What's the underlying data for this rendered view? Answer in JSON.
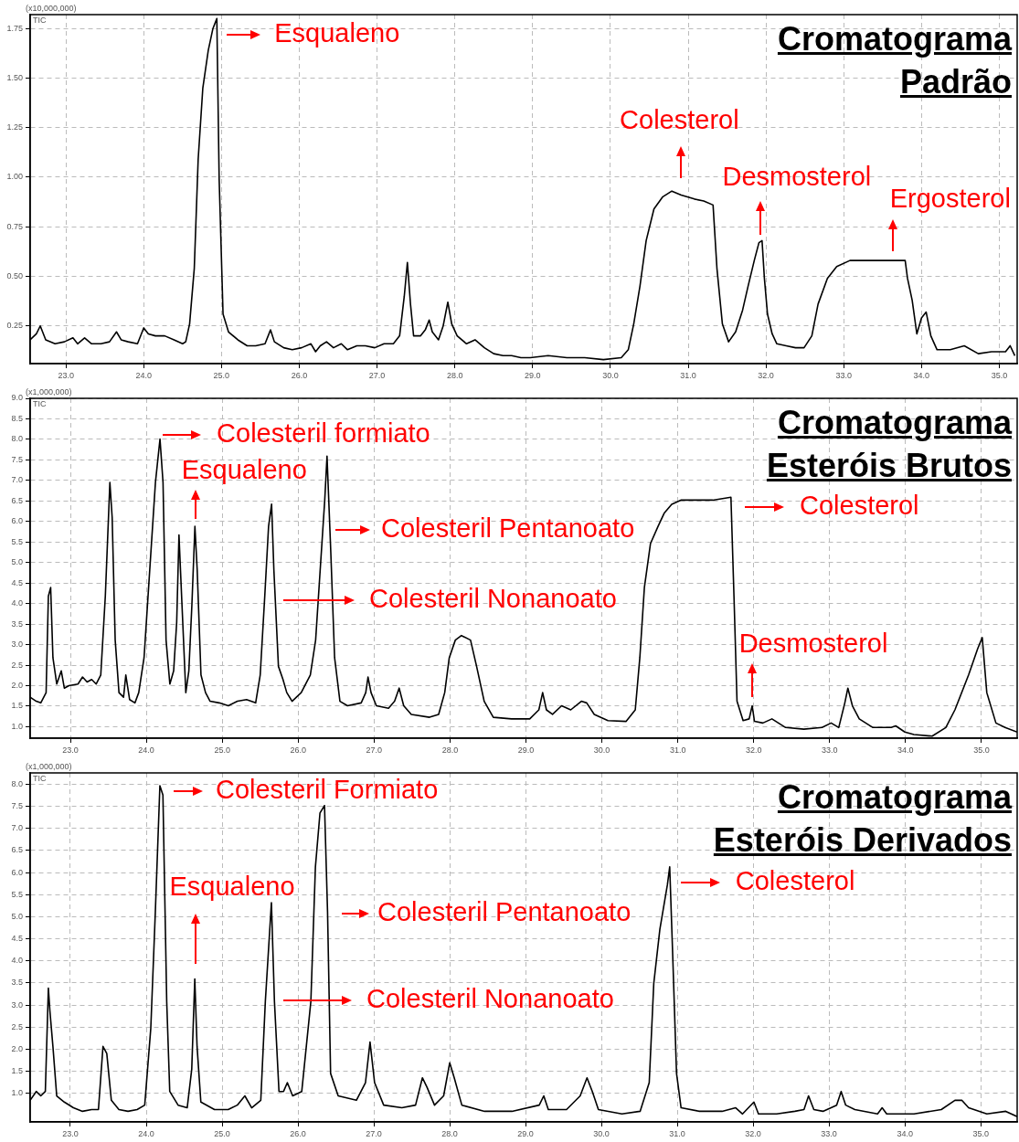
{
  "chart_data": [
    {
      "type": "line",
      "title": "Cromatograma Padrão",
      "ylabel": "TIC",
      "color": "#000000",
      "marker": "none",
      "grid": true,
      "annotations": [
        "(x10,000,000)",
        {
          "text": "Esqualeno",
          "x": 24.94,
          "y": 1.8
        },
        {
          "text": "Colesterol",
          "x": 30.91,
          "y": 0.93
        },
        {
          "text": "Desmosterol",
          "x": 31.95,
          "y": 0.68
        },
        {
          "text": "Ergosterol",
          "x": 33.43,
          "y": 0.58
        }
      ],
      "xlim": [
        22.54,
        35.23
      ],
      "ylim": [
        0.06,
        1.82
      ],
      "xticks": [
        {
          "value": 23,
          "label": "23.0"
        },
        {
          "value": 24,
          "label": "24.0"
        },
        {
          "value": 25,
          "label": "25.0"
        },
        {
          "value": 26,
          "label": "26.0"
        },
        {
          "value": 27,
          "label": "27.0"
        },
        {
          "value": 28,
          "label": "28.0"
        },
        {
          "value": 29,
          "label": "29.0"
        },
        {
          "value": 30,
          "label": "30.0"
        },
        {
          "value": 31,
          "label": "31.0"
        },
        {
          "value": 32,
          "label": "32.0"
        },
        {
          "value": 33,
          "label": "33.0"
        },
        {
          "value": 34,
          "label": "34.0"
        },
        {
          "value": 35,
          "label": "35.0"
        }
      ],
      "yticks": [
        0.25,
        {
          "value": 0.5,
          "label": "0.50"
        },
        0.75,
        {
          "value": 1,
          "label": "1.00"
        },
        1.25,
        {
          "value": 1.5,
          "label": "1.50"
        },
        1.75
      ],
      "x": [
        22.54,
        22.62,
        22.67,
        22.74,
        22.86,
        22.98,
        23.09,
        23.15,
        23.24,
        23.33,
        23.45,
        23.56,
        23.65,
        23.71,
        23.8,
        23.92,
        24.0,
        24.06,
        24.15,
        24.27,
        24.39,
        24.5,
        24.54,
        24.59,
        24.65,
        24.7,
        24.76,
        24.83,
        24.89,
        24.94,
        24.97,
        25.02,
        25.09,
        25.21,
        25.33,
        25.44,
        25.56,
        25.63,
        25.68,
        25.8,
        25.91,
        26.03,
        26.15,
        26.21,
        26.27,
        26.35,
        26.44,
        26.54,
        26.62,
        26.74,
        26.85,
        26.97,
        27.09,
        27.21,
        27.29,
        27.35,
        27.39,
        27.43,
        27.47,
        27.56,
        27.62,
        27.67,
        27.71,
        27.79,
        27.85,
        27.91,
        27.96,
        28.03,
        28.15,
        28.26,
        28.38,
        28.5,
        28.62,
        28.73,
        28.85,
        28.97,
        29.2,
        29.44,
        29.67,
        29.91,
        30.14,
        30.23,
        30.3,
        30.38,
        30.46,
        30.56,
        30.67,
        30.79,
        30.91,
        31.08,
        31.2,
        31.32,
        31.37,
        31.44,
        31.52,
        31.61,
        31.7,
        31.77,
        31.85,
        31.91,
        31.95,
        31.98,
        32.02,
        32.08,
        32.14,
        32.26,
        32.38,
        32.49,
        32.59,
        32.67,
        32.79,
        32.91,
        33.08,
        33.43,
        33.79,
        33.82,
        33.88,
        33.94,
        34.0,
        34.06,
        34.12,
        34.2,
        34.37,
        34.55,
        34.73,
        34.9,
        35.08,
        35.14,
        35.2
      ],
      "values": [
        0.18,
        0.21,
        0.25,
        0.18,
        0.16,
        0.17,
        0.19,
        0.16,
        0.19,
        0.16,
        0.16,
        0.17,
        0.22,
        0.18,
        0.17,
        0.16,
        0.24,
        0.21,
        0.2,
        0.2,
        0.18,
        0.16,
        0.17,
        0.26,
        0.54,
        1.09,
        1.45,
        1.64,
        1.75,
        1.8,
        0.99,
        0.31,
        0.22,
        0.18,
        0.15,
        0.15,
        0.16,
        0.23,
        0.17,
        0.14,
        0.13,
        0.14,
        0.16,
        0.12,
        0.15,
        0.17,
        0.14,
        0.16,
        0.13,
        0.15,
        0.15,
        0.14,
        0.16,
        0.16,
        0.2,
        0.4,
        0.57,
        0.36,
        0.2,
        0.2,
        0.23,
        0.28,
        0.22,
        0.18,
        0.25,
        0.37,
        0.26,
        0.2,
        0.16,
        0.18,
        0.14,
        0.11,
        0.1,
        0.1,
        0.09,
        0.09,
        0.1,
        0.09,
        0.09,
        0.08,
        0.09,
        0.13,
        0.26,
        0.45,
        0.68,
        0.84,
        0.9,
        0.93,
        0.91,
        0.89,
        0.88,
        0.86,
        0.54,
        0.26,
        0.17,
        0.22,
        0.33,
        0.45,
        0.58,
        0.67,
        0.68,
        0.49,
        0.31,
        0.21,
        0.16,
        0.15,
        0.14,
        0.14,
        0.2,
        0.36,
        0.49,
        0.55,
        0.58,
        0.58,
        0.58,
        0.49,
        0.38,
        0.21,
        0.29,
        0.32,
        0.2,
        0.13,
        0.13,
        0.15,
        0.11,
        0.12,
        0.12,
        0.15,
        0.1
      ]
    },
    {
      "type": "line",
      "title": "Cromatograma Esteróis Brutos",
      "ylabel": "TIC",
      "color": "#000000",
      "marker": "none",
      "grid": true,
      "annotations": [
        "(x1,000,000)",
        {
          "text": "Colesteril formiato",
          "x": 24.18,
          "y": 8.01
        },
        {
          "text": "Esqualeno",
          "x": 24.64,
          "y": 5.88
        },
        "Colesteril Pentanoato",
        "Colesteril Nonanoato",
        "Colesterol",
        {
          "text": "Desmosterol",
          "x": 31.98,
          "y": 1.51
        }
      ],
      "xlim": [
        22.47,
        35.47
      ],
      "ylim": [
        0.72,
        9.0
      ],
      "xticks": [
        {
          "value": 23,
          "label": "23.0"
        },
        {
          "value": 24,
          "label": "24.0"
        },
        {
          "value": 25,
          "label": "25.0"
        },
        {
          "value": 26,
          "label": "26.0"
        },
        {
          "value": 27,
          "label": "27.0"
        },
        {
          "value": 28,
          "label": "28.0"
        },
        {
          "value": 29,
          "label": "29.0"
        },
        {
          "value": 30,
          "label": "30.0"
        },
        {
          "value": 31,
          "label": "31.0"
        },
        {
          "value": 32,
          "label": "32.0"
        },
        {
          "value": 33,
          "label": "33.0"
        },
        {
          "value": 34,
          "label": "34.0"
        },
        {
          "value": 35,
          "label": "35.0"
        }
      ],
      "yticks": [
        {
          "value": 1,
          "label": "1.0"
        },
        1.5,
        {
          "value": 2,
          "label": "2.0"
        },
        2.5,
        {
          "value": 3,
          "label": "3.0"
        },
        3.5,
        {
          "value": 4,
          "label": "4.0"
        },
        4.5,
        {
          "value": 5,
          "label": "5.0"
        },
        5.5,
        {
          "value": 6,
          "label": "6.0"
        },
        6.5,
        {
          "value": 7,
          "label": "7.0"
        },
        7.5,
        {
          "value": 8,
          "label": "8.0"
        },
        8.5,
        {
          "value": 9,
          "label": "9.0"
        }
      ],
      "x": [
        22.47,
        22.55,
        22.61,
        22.68,
        22.71,
        22.74,
        22.77,
        22.82,
        22.88,
        22.92,
        22.98,
        23.1,
        23.16,
        23.22,
        23.28,
        23.34,
        23.4,
        23.46,
        23.52,
        23.55,
        23.59,
        23.64,
        23.7,
        23.73,
        23.78,
        23.85,
        23.9,
        23.97,
        24.03,
        24.12,
        24.18,
        24.22,
        24.26,
        24.31,
        24.36,
        24.4,
        24.43,
        24.47,
        24.52,
        24.56,
        24.6,
        24.64,
        24.67,
        24.72,
        24.78,
        24.84,
        24.96,
        25.08,
        25.2,
        25.32,
        25.44,
        25.5,
        25.56,
        25.61,
        25.65,
        25.68,
        25.74,
        25.8,
        25.85,
        25.92,
        26.04,
        26.16,
        26.23,
        26.29,
        26.35,
        26.38,
        26.43,
        26.48,
        26.55,
        26.65,
        26.83,
        26.89,
        26.92,
        26.96,
        27.03,
        27.19,
        27.27,
        27.33,
        27.39,
        27.49,
        27.73,
        27.85,
        27.93,
        27.99,
        28.07,
        28.15,
        28.27,
        28.35,
        28.45,
        28.57,
        28.81,
        29.05,
        29.17,
        29.22,
        29.27,
        29.35,
        29.47,
        29.59,
        29.73,
        29.8,
        29.9,
        30.08,
        30.32,
        30.44,
        30.5,
        30.56,
        30.64,
        30.74,
        30.82,
        30.92,
        31.04,
        31.22,
        31.46,
        31.7,
        31.74,
        31.78,
        31.86,
        31.94,
        31.98,
        32.01,
        32.12,
        32.24,
        32.42,
        32.66,
        32.9,
        33.02,
        33.12,
        33.2,
        33.24,
        33.3,
        33.39,
        33.57,
        33.81,
        33.87,
        33.99,
        34.11,
        34.35,
        34.53,
        34.65,
        34.83,
        34.95,
        35.01,
        35.07,
        35.19,
        35.31,
        35.47
      ],
      "values": [
        1.72,
        1.62,
        1.58,
        1.83,
        4.18,
        4.39,
        2.68,
        2.04,
        2.36,
        1.94,
        2.0,
        2.04,
        2.21,
        2.09,
        2.15,
        2.04,
        2.26,
        4.18,
        6.95,
        6.1,
        3.11,
        1.83,
        1.72,
        2.26,
        1.66,
        1.58,
        1.83,
        2.68,
        4.39,
        6.95,
        8.01,
        6.95,
        3.11,
        2.04,
        2.36,
        3.54,
        5.67,
        3.96,
        1.83,
        2.36,
        3.96,
        5.88,
        4.82,
        2.26,
        1.83,
        1.62,
        1.58,
        1.51,
        1.62,
        1.66,
        1.58,
        2.26,
        4.18,
        5.88,
        6.42,
        4.82,
        2.47,
        2.15,
        1.83,
        1.62,
        1.83,
        2.26,
        3.11,
        4.82,
        6.52,
        7.59,
        5.24,
        2.68,
        1.62,
        1.51,
        1.58,
        1.83,
        2.21,
        1.83,
        1.51,
        1.45,
        1.62,
        1.94,
        1.51,
        1.3,
        1.23,
        1.3,
        1.83,
        2.68,
        3.11,
        3.22,
        3.11,
        2.47,
        1.62,
        1.23,
        1.19,
        1.19,
        1.41,
        1.83,
        1.41,
        1.3,
        1.51,
        1.41,
        1.62,
        1.58,
        1.3,
        1.15,
        1.13,
        1.41,
        2.68,
        4.39,
        5.46,
        5.88,
        6.2,
        6.42,
        6.52,
        6.52,
        6.52,
        6.59,
        4.18,
        1.62,
        1.15,
        1.19,
        1.51,
        1.13,
        1.09,
        1.19,
        0.98,
        0.94,
        0.98,
        1.09,
        0.98,
        1.58,
        1.94,
        1.51,
        1.19,
        0.98,
        0.98,
        1.02,
        0.87,
        0.81,
        0.77,
        0.98,
        1.41,
        2.26,
        2.9,
        3.17,
        1.83,
        1.09,
        0.98,
        0.87
      ]
    },
    {
      "type": "line",
      "title": "Cromatograma Esteróis Derivados",
      "ylabel": "TIC",
      "color": "#000000",
      "marker": "none",
      "grid": true,
      "annotations": [
        "(x1,000,000)",
        {
          "text": "Colesteril Formiato",
          "x": 24.18,
          "y": 7.97
        },
        "Esqualeno",
        "Colesteril Pentanoato",
        "Colesteril Nonanoato",
        {
          "text": "Colesterol",
          "x": 30.9,
          "y": 6.13
        }
      ],
      "xlim": [
        22.47,
        35.48
      ],
      "ylim": [
        0.35,
        8.26
      ],
      "xticks": [
        {
          "value": 23,
          "label": "23.0"
        },
        {
          "value": 24,
          "label": "24.0"
        },
        {
          "value": 25,
          "label": "25.0"
        },
        {
          "value": 26,
          "label": "26.0"
        },
        {
          "value": 27,
          "label": "27.0"
        },
        {
          "value": 28,
          "label": "28.0"
        },
        {
          "value": 29,
          "label": "29.0"
        },
        {
          "value": 30,
          "label": "30.0"
        },
        {
          "value": 31,
          "label": "31.0"
        },
        {
          "value": 32,
          "label": "32.0"
        },
        {
          "value": 33,
          "label": "33.0"
        },
        {
          "value": 34,
          "label": "34.0"
        },
        {
          "value": 35,
          "label": "35.0"
        }
      ],
      "yticks": [
        {
          "value": 1,
          "label": "1.0"
        },
        1.5,
        {
          "value": 2,
          "label": "2.0"
        },
        2.5,
        {
          "value": 3,
          "label": "3.0"
        },
        3.5,
        {
          "value": 4,
          "label": "4.0"
        },
        4.5,
        {
          "value": 5,
          "label": "5.0"
        },
        5.5,
        {
          "value": 6,
          "label": "6.0"
        },
        6.5,
        {
          "value": 7,
          "label": "7.0"
        },
        7.5,
        {
          "value": 8,
          "label": "8.0"
        }
      ],
      "x": [
        22.47,
        22.55,
        22.61,
        22.67,
        22.71,
        22.73,
        22.77,
        22.82,
        22.92,
        23.04,
        23.16,
        23.28,
        23.37,
        23.43,
        23.48,
        23.54,
        23.64,
        23.76,
        23.88,
        23.98,
        24.06,
        24.12,
        24.18,
        24.22,
        24.27,
        24.31,
        24.42,
        24.54,
        24.6,
        24.64,
        24.67,
        24.72,
        24.9,
        25.08,
        25.2,
        25.3,
        25.39,
        25.51,
        25.57,
        25.65,
        25.69,
        25.75,
        25.81,
        25.86,
        25.93,
        26.05,
        26.17,
        26.23,
        26.29,
        26.35,
        26.39,
        26.43,
        26.53,
        26.77,
        26.89,
        26.95,
        27.01,
        27.13,
        27.37,
        27.55,
        27.64,
        27.7,
        27.8,
        27.92,
        28.0,
        28.06,
        28.16,
        28.46,
        28.82,
        29.18,
        29.24,
        29.3,
        29.54,
        29.72,
        29.81,
        29.88,
        29.96,
        30.27,
        30.51,
        30.63,
        30.69,
        30.77,
        30.87,
        30.9,
        30.94,
        30.99,
        31.05,
        31.29,
        31.59,
        31.77,
        31.86,
        32.01,
        32.07,
        32.31,
        32.55,
        32.67,
        32.73,
        32.8,
        32.92,
        33.1,
        33.16,
        33.22,
        33.34,
        33.64,
        33.7,
        33.76,
        34.12,
        34.48,
        34.66,
        34.75,
        34.84,
        35.08,
        35.33,
        35.48
      ],
      "values": [
        0.84,
        1.04,
        0.94,
        1.04,
        3.38,
        2.87,
        2.06,
        0.94,
        0.8,
        0.67,
        0.59,
        0.63,
        0.63,
        2.06,
        1.9,
        0.84,
        0.63,
        0.59,
        0.63,
        0.73,
        2.47,
        5.11,
        7.97,
        7.76,
        3.08,
        1.04,
        0.73,
        0.67,
        1.55,
        3.59,
        2.06,
        0.8,
        0.63,
        0.63,
        0.73,
        0.94,
        0.67,
        0.84,
        3.08,
        5.32,
        3.08,
        1.04,
        1.04,
        1.24,
        0.94,
        1.04,
        3.08,
        6.13,
        7.35,
        7.52,
        5.11,
        1.45,
        0.94,
        0.84,
        1.24,
        2.16,
        1.24,
        0.73,
        0.67,
        0.73,
        1.35,
        1.14,
        0.73,
        0.94,
        1.69,
        1.35,
        0.73,
        0.59,
        0.59,
        0.73,
        0.94,
        0.63,
        0.63,
        0.94,
        1.35,
        1.04,
        0.63,
        0.53,
        0.59,
        1.24,
        3.49,
        4.71,
        5.73,
        6.13,
        4.1,
        1.45,
        0.67,
        0.59,
        0.59,
        0.67,
        0.53,
        0.8,
        0.53,
        0.53,
        0.59,
        0.63,
        0.94,
        0.63,
        0.59,
        0.73,
        1.04,
        0.73,
        0.63,
        0.53,
        0.67,
        0.53,
        0.53,
        0.63,
        0.84,
        0.84,
        0.67,
        0.53,
        0.59,
        0.47
      ]
    }
  ]
}
